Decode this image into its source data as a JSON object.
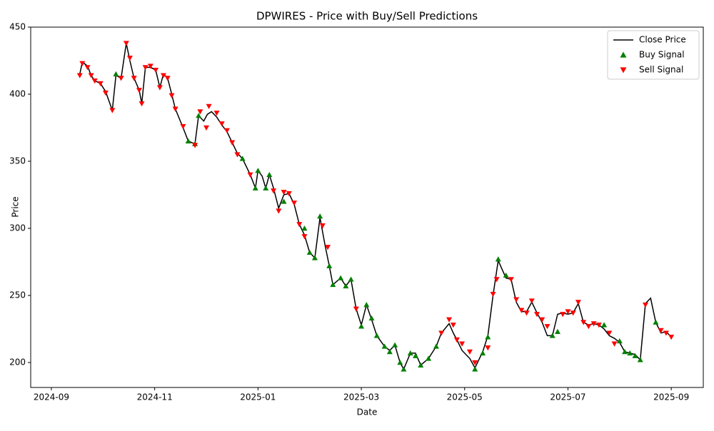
{
  "chart_data": {
    "type": "line",
    "title": "DPWIRES - Price with Buy/Sell Predictions",
    "xlabel": "Date",
    "ylabel": "Price",
    "xlim": [
      8.6,
      21.62
    ],
    "ylim": [
      181.4,
      450
    ],
    "xticks": [
      {
        "value": 9,
        "label": "2024-09"
      },
      {
        "value": 11,
        "label": "2024-11"
      },
      {
        "value": 13,
        "label": "2025-01"
      },
      {
        "value": 15,
        "label": "2025-03"
      },
      {
        "value": 17,
        "label": "2025-05"
      },
      {
        "value": 19,
        "label": "2025-07"
      },
      {
        "value": 21,
        "label": "2025-09"
      }
    ],
    "yticks": [
      200,
      250,
      300,
      350,
      400,
      450
    ],
    "legend": "upper right",
    "series": [
      {
        "name": "Close Price",
        "color": "#000000",
        "kind": "line",
        "x": [
          9.55,
          9.6,
          9.7,
          9.77,
          9.84,
          9.95,
          10.05,
          10.18,
          10.25,
          10.35,
          10.45,
          10.52,
          10.6,
          10.7,
          10.75,
          10.82,
          10.92,
          11.02,
          11.1,
          11.17,
          11.25,
          11.33,
          11.4,
          11.55,
          11.65,
          11.78,
          11.85,
          11.95,
          12.02,
          12.1,
          12.2,
          12.3,
          12.4,
          12.5,
          12.6,
          12.7,
          12.85,
          12.95,
          13.0,
          13.08,
          13.15,
          13.22,
          13.3,
          13.4,
          13.5,
          13.6,
          13.7,
          13.8,
          13.9,
          14.0,
          14.1,
          14.2,
          14.3,
          14.38,
          14.45,
          14.6,
          14.7,
          14.8,
          14.9,
          15.0,
          15.1,
          15.2,
          15.3,
          15.45,
          15.55,
          15.65,
          15.75,
          15.82,
          15.95,
          16.05,
          16.15,
          16.3,
          16.45,
          16.55,
          16.7,
          16.78,
          16.85,
          16.95,
          17.1,
          17.2,
          17.35,
          17.45,
          17.55,
          17.65,
          17.8,
          17.9,
          18.0,
          18.1,
          18.2,
          18.3,
          18.4,
          18.5,
          18.6,
          18.7,
          18.8,
          18.9,
          19.0,
          19.1,
          19.2,
          19.3,
          19.4,
          19.5,
          19.6,
          19.7,
          19.8,
          19.9,
          20.0,
          20.1,
          20.2,
          20.3,
          20.4,
          20.5,
          20.6,
          20.7,
          20.8,
          20.9,
          21.0
        ],
        "values": [
          415,
          424,
          421,
          414,
          410,
          408,
          402,
          388,
          414,
          412,
          438,
          425,
          412,
          403,
          393,
          420,
          420,
          418,
          405,
          415,
          412,
          400,
          389,
          375,
          365,
          363,
          384,
          380,
          385,
          387,
          383,
          377,
          372,
          364,
          356,
          352,
          340,
          330,
          343,
          339,
          330,
          340,
          330,
          315,
          325,
          326,
          318,
          303,
          295,
          282,
          278,
          308,
          287,
          272,
          258,
          263,
          257,
          262,
          240,
          228,
          243,
          232,
          220,
          212,
          209,
          213,
          200,
          195,
          207,
          207,
          198,
          203,
          212,
          222,
          229,
          222,
          217,
          209,
          203,
          196,
          208,
          220,
          250,
          276,
          263,
          262,
          245,
          238,
          238,
          245,
          237,
          230,
          220,
          220,
          236,
          237,
          236,
          237,
          244,
          230,
          228,
          229,
          228,
          225,
          220,
          218,
          215,
          208,
          207,
          206,
          202,
          244,
          248,
          230,
          222,
          223,
          219
        ]
      },
      {
        "name": "Buy Signal",
        "color": "#008000",
        "kind": "buy",
        "x": [
          10.25,
          11.65,
          11.78,
          11.85,
          12.7,
          12.95,
          13.0,
          13.15,
          13.22,
          13.5,
          13.9,
          14.0,
          14.1,
          14.2,
          14.38,
          14.45,
          14.6,
          14.7,
          14.8,
          15.0,
          15.1,
          15.2,
          15.3,
          15.45,
          15.55,
          15.65,
          15.75,
          15.82,
          15.95,
          16.05,
          16.15,
          16.3,
          16.45,
          17.2,
          17.35,
          17.45,
          17.65,
          17.8,
          18.7,
          18.8,
          19.7,
          20.0,
          20.1,
          20.2,
          20.3,
          20.4,
          20.7
        ],
        "values": [
          415,
          365,
          363,
          384,
          352,
          330,
          343,
          330,
          340,
          320,
          300,
          282,
          278,
          309,
          272,
          258,
          263,
          257,
          262,
          227,
          243,
          233,
          220,
          212,
          208,
          213,
          200,
          195,
          207,
          205,
          198,
          203,
          212,
          195,
          207,
          219,
          277,
          265,
          220,
          223,
          228,
          216,
          208,
          207,
          205,
          202,
          230
        ]
      },
      {
        "name": "Sell Signal",
        "color": "#ff0000",
        "kind": "sell",
        "x": [
          9.55,
          9.6,
          9.7,
          9.77,
          9.84,
          9.95,
          10.05,
          10.18,
          10.35,
          10.45,
          10.52,
          10.6,
          10.7,
          10.75,
          10.82,
          10.92,
          11.02,
          11.1,
          11.17,
          11.25,
          11.33,
          11.4,
          11.55,
          11.78,
          11.88,
          12.0,
          12.05,
          12.2,
          12.3,
          12.4,
          12.5,
          12.6,
          12.85,
          13.3,
          13.4,
          13.5,
          13.6,
          13.7,
          13.8,
          13.9,
          14.25,
          14.35,
          14.9,
          16.55,
          16.7,
          16.78,
          16.85,
          16.95,
          17.1,
          17.2,
          17.45,
          17.55,
          17.62,
          17.9,
          18.0,
          18.1,
          18.2,
          18.3,
          18.4,
          18.5,
          18.6,
          18.9,
          19.0,
          19.1,
          19.2,
          19.3,
          19.4,
          19.5,
          19.6,
          19.8,
          19.9,
          20.5,
          20.8,
          20.9,
          21.0
        ],
        "values": [
          414,
          423,
          420,
          414,
          410,
          408,
          401,
          388,
          412,
          438,
          427,
          412,
          403,
          393,
          420,
          421,
          418,
          405,
          414,
          412,
          399,
          389,
          376,
          362,
          387,
          375,
          391,
          386,
          378,
          373,
          364,
          355,
          340,
          328,
          313,
          327,
          326,
          319,
          303,
          294,
          302,
          286,
          240,
          222,
          232,
          228,
          217,
          214,
          208,
          200,
          211,
          251,
          262,
          262,
          247,
          239,
          237,
          246,
          236,
          232,
          227,
          236,
          238,
          237,
          245,
          230,
          227,
          229,
          228,
          222,
          214,
          243,
          224,
          222,
          219
        ]
      }
    ]
  }
}
